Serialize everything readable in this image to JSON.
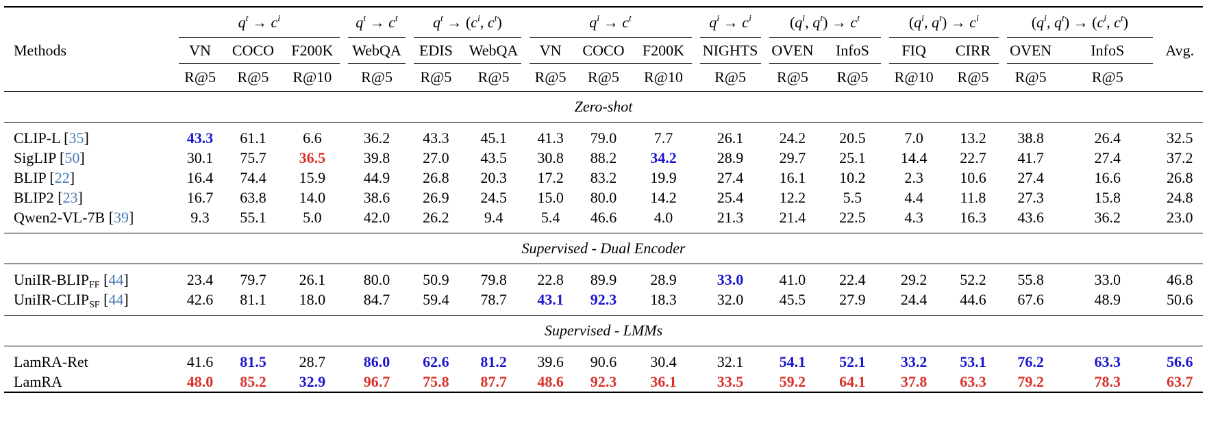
{
  "table": {
    "methods_header": "Methods",
    "avg_header": "Avg.",
    "tasks": [
      {
        "q": "t",
        "c": "i",
        "span": 3
      },
      {
        "q": "t",
        "c": "t",
        "span": 1
      },
      {
        "q": "t",
        "c": "(i,t)",
        "span": 2
      },
      {
        "q": "i",
        "c": "t",
        "span": 3
      },
      {
        "q": "i",
        "c": "i",
        "span": 1
      },
      {
        "q": "(i,t)",
        "c": "t",
        "span": 2
      },
      {
        "q": "(i,t)",
        "c": "i",
        "span": 2
      },
      {
        "q": "(i,t)",
        "c": "(i,t)",
        "span": 2
      }
    ],
    "datasets": [
      "VN",
      "COCO",
      "F200K",
      "WebQA",
      "EDIS",
      "WebQA",
      "VN",
      "COCO",
      "F200K",
      "NIGHTS",
      "OVEN",
      "InfoS",
      "FIQ",
      "CIRR",
      "OVEN",
      "InfoS"
    ],
    "metrics": [
      "R@5",
      "R@5",
      "R@10",
      "R@5",
      "R@5",
      "R@5",
      "R@5",
      "R@5",
      "R@10",
      "R@5",
      "R@5",
      "R@5",
      "R@10",
      "R@5",
      "R@5",
      "R@5"
    ],
    "sections": [
      {
        "title": "Zero-shot",
        "rows": [
          {
            "method": "CLIP-L",
            "sub": "",
            "cite": "35",
            "values": [
              "43.3",
              "61.1",
              "6.6",
              "36.2",
              "43.3",
              "45.1",
              "41.3",
              "79.0",
              "7.7",
              "26.1",
              "24.2",
              "20.5",
              "7.0",
              "13.2",
              "38.8",
              "26.4"
            ],
            "avg": "32.5",
            "best": [],
            "second": [
              0
            ]
          },
          {
            "method": "SigLIP",
            "sub": "",
            "cite": "50",
            "values": [
              "30.1",
              "75.7",
              "36.5",
              "39.8",
              "27.0",
              "43.5",
              "30.8",
              "88.2",
              "34.2",
              "28.9",
              "29.7",
              "25.1",
              "14.4",
              "22.7",
              "41.7",
              "27.4"
            ],
            "avg": "37.2",
            "best": [
              2
            ],
            "second": [
              8
            ]
          },
          {
            "method": "BLIP",
            "sub": "",
            "cite": "22",
            "values": [
              "16.4",
              "74.4",
              "15.9",
              "44.9",
              "26.8",
              "20.3",
              "17.2",
              "83.2",
              "19.9",
              "27.4",
              "16.1",
              "10.2",
              "2.3",
              "10.6",
              "27.4",
              "16.6"
            ],
            "avg": "26.8",
            "best": [],
            "second": []
          },
          {
            "method": "BLIP2",
            "sub": "",
            "cite": "23",
            "values": [
              "16.7",
              "63.8",
              "14.0",
              "38.6",
              "26.9",
              "24.5",
              "15.0",
              "80.0",
              "14.2",
              "25.4",
              "12.2",
              "5.5",
              "4.4",
              "11.8",
              "27.3",
              "15.8"
            ],
            "avg": "24.8",
            "best": [],
            "second": []
          },
          {
            "method": "Qwen2-VL-7B",
            "sub": "",
            "cite": "39",
            "values": [
              "9.3",
              "55.1",
              "5.0",
              "42.0",
              "26.2",
              "9.4",
              "5.4",
              "46.6",
              "4.0",
              "21.3",
              "21.4",
              "22.5",
              "4.3",
              "16.3",
              "43.6",
              "36.2"
            ],
            "avg": "23.0",
            "best": [],
            "second": []
          }
        ]
      },
      {
        "title": "Supervised - Dual Encoder",
        "rows": [
          {
            "method": "UniIR-BLIP",
            "sub": "FF",
            "cite": "44",
            "values": [
              "23.4",
              "79.7",
              "26.1",
              "80.0",
              "50.9",
              "79.8",
              "22.8",
              "89.9",
              "28.9",
              "33.0",
              "41.0",
              "22.4",
              "29.2",
              "52.2",
              "55.8",
              "33.0"
            ],
            "avg": "46.8",
            "best": [],
            "second": [
              9
            ]
          },
          {
            "method": "UniIR-CLIP",
            "sub": "SF",
            "cite": "44",
            "values": [
              "42.6",
              "81.1",
              "18.0",
              "84.7",
              "59.4",
              "78.7",
              "43.1",
              "92.3",
              "18.3",
              "32.0",
              "45.5",
              "27.9",
              "24.4",
              "44.6",
              "67.6",
              "48.9"
            ],
            "avg": "50.6",
            "best": [],
            "second": [
              6,
              7
            ]
          }
        ]
      },
      {
        "title": "Supervised - LMMs",
        "rows": [
          {
            "method": "LamRA-Ret",
            "sub": "",
            "cite": "",
            "values": [
              "41.6",
              "81.5",
              "28.7",
              "86.0",
              "62.6",
              "81.2",
              "39.6",
              "90.6",
              "30.4",
              "32.1",
              "54.1",
              "52.1",
              "33.2",
              "53.1",
              "76.2",
              "63.3"
            ],
            "avg": "56.6",
            "best": [],
            "second": [
              1,
              3,
              4,
              5,
              10,
              11,
              12,
              13,
              14,
              15,
              16
            ]
          },
          {
            "method": "LamRA",
            "sub": "",
            "cite": "",
            "values": [
              "48.0",
              "85.2",
              "32.9",
              "96.7",
              "75.8",
              "87.7",
              "48.6",
              "92.3",
              "36.1",
              "33.5",
              "59.2",
              "64.1",
              "37.8",
              "63.3",
              "79.2",
              "78.3"
            ],
            "avg": "63.7",
            "best": [
              0,
              1,
              3,
              4,
              5,
              6,
              7,
              8,
              9,
              10,
              11,
              12,
              13,
              14,
              15,
              16
            ],
            "second": [
              2
            ]
          }
        ]
      }
    ],
    "colors": {
      "best": "#d9322a",
      "second": "#1a16d0",
      "cite": "#4a7ab5"
    }
  }
}
